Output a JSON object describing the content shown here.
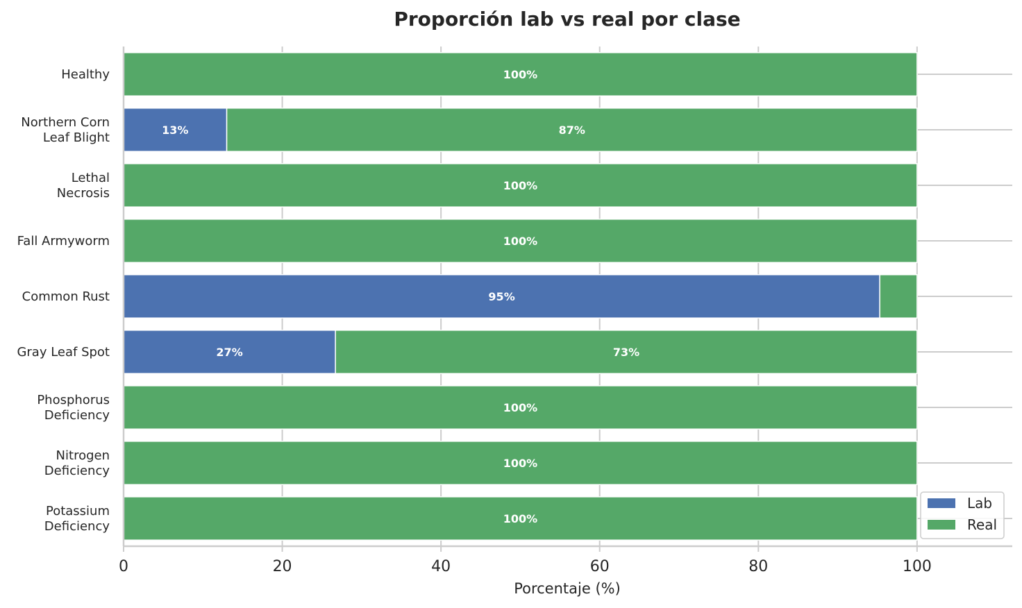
{
  "chart_data": {
    "type": "bar",
    "orientation": "horizontal",
    "stacked": true,
    "title": "Proporción lab vs real por clase",
    "xlabel": "Porcentaje (%)",
    "ylabel": "",
    "xlim": [
      0,
      112
    ],
    "xticks": [
      0,
      20,
      40,
      60,
      80,
      100
    ],
    "grid": true,
    "legend_position": "bottom-right",
    "categories": [
      [
        "Healthy"
      ],
      [
        "Northern Corn",
        "Leaf Blight"
      ],
      [
        "Lethal",
        "Necrosis"
      ],
      [
        "Fall Armyworm"
      ],
      [
        "Common Rust"
      ],
      [
        "Gray Leaf Spot"
      ],
      [
        "Phosphorus",
        "Deficiency"
      ],
      [
        "Nitrogen",
        "Deficiency"
      ],
      [
        "Potassium",
        "Deficiency"
      ]
    ],
    "series": [
      {
        "name": "Lab",
        "color": "#4c72b0",
        "values": [
          0,
          13,
          0,
          0,
          95.3,
          26.7,
          0,
          0,
          0
        ],
        "labels": [
          "",
          "13%",
          "",
          "",
          "95%",
          "27%",
          "",
          "",
          ""
        ]
      },
      {
        "name": "Real",
        "color": "#55a868",
        "values": [
          100,
          87,
          100,
          100,
          4.7,
          73.3,
          100,
          100,
          100
        ],
        "labels": [
          "100%",
          "87%",
          "100%",
          "100%",
          "",
          "73%",
          "100%",
          "100%",
          "100%"
        ]
      }
    ]
  }
}
